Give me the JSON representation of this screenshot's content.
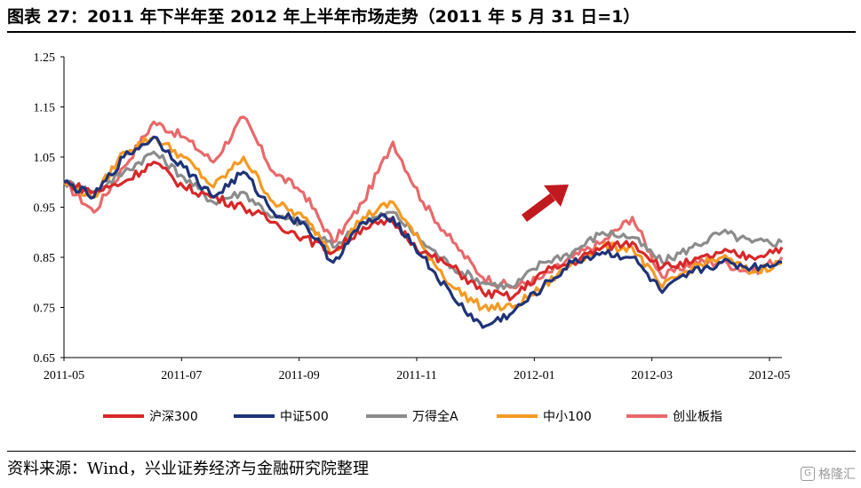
{
  "title": "图表 27：2011 年下半年至 2012 年上半年市场走势（2011 年 5 月 31 日=1）",
  "source": "资料来源：Wind，兴业证券经济与金融研究院整理",
  "watermark": "格隆汇",
  "colors": {
    "hs300": "#d7282a",
    "zz500": "#1f3378",
    "wind_a": "#8c8c8c",
    "zx100": "#f59a23",
    "cyb": "#e8696b",
    "arrow": "#c0191e"
  },
  "chart_data": {
    "type": "line",
    "xlabel": "",
    "ylabel": "",
    "ylim": [
      0.65,
      1.25
    ],
    "yticks": [
      "0.65",
      "0.75",
      "0.85",
      "0.95",
      "1.05",
      "1.15",
      "1.25"
    ],
    "xticks": [
      "2011-05",
      "2011-07",
      "2011-09",
      "2011-11",
      "2012-01",
      "2012-03",
      "2012-05"
    ],
    "x": [
      "2011-05",
      "2011-06a",
      "2011-06b",
      "2011-07a",
      "2011-07b",
      "2011-08a",
      "2011-08b",
      "2011-09a",
      "2011-09b",
      "2011-10a",
      "2011-10b",
      "2011-11a",
      "2011-11b",
      "2011-12a",
      "2011-12b",
      "2012-01a",
      "2012-01b",
      "2012-02a",
      "2012-02b",
      "2012-03a",
      "2012-03b",
      "2012-04a",
      "2012-04b",
      "2012-05a",
      "2012-05b"
    ],
    "legend_position": "bottom",
    "grid": false,
    "series": [
      {
        "name": "沪深300",
        "key": "hs300",
        "values": [
          1.0,
          0.98,
          1.0,
          1.04,
          0.99,
          0.97,
          0.95,
          0.92,
          0.89,
          0.86,
          0.91,
          0.92,
          0.86,
          0.83,
          0.78,
          0.77,
          0.82,
          0.84,
          0.87,
          0.88,
          0.83,
          0.84,
          0.86,
          0.85,
          0.87
        ]
      },
      {
        "name": "中证500",
        "key": "zz500",
        "values": [
          1.0,
          0.97,
          1.05,
          1.09,
          1.03,
          0.97,
          1.02,
          0.94,
          0.92,
          0.84,
          0.92,
          0.93,
          0.85,
          0.77,
          0.71,
          0.74,
          0.79,
          0.84,
          0.86,
          0.85,
          0.78,
          0.82,
          0.84,
          0.83,
          0.84
        ]
      },
      {
        "name": "万得全A",
        "key": "wind_a",
        "values": [
          1.0,
          0.98,
          1.02,
          1.06,
          1.01,
          0.96,
          0.98,
          0.93,
          0.92,
          0.87,
          0.92,
          0.94,
          0.88,
          0.83,
          0.8,
          0.79,
          0.84,
          0.86,
          0.9,
          0.89,
          0.84,
          0.87,
          0.9,
          0.88,
          0.88
        ]
      },
      {
        "name": "中小100",
        "key": "zx100",
        "values": [
          1.0,
          0.97,
          1.06,
          1.09,
          1.05,
          0.99,
          1.05,
          0.96,
          0.93,
          0.86,
          0.93,
          0.96,
          0.87,
          0.79,
          0.75,
          0.75,
          0.79,
          0.84,
          0.87,
          0.87,
          0.79,
          0.83,
          0.85,
          0.82,
          0.84
        ]
      },
      {
        "name": "创业板指",
        "key": "cyb",
        "values": [
          1.0,
          0.94,
          1.03,
          1.12,
          1.09,
          1.04,
          1.13,
          1.02,
          0.98,
          0.88,
          0.96,
          1.08,
          0.96,
          0.88,
          0.81,
          0.79,
          0.81,
          0.85,
          0.88,
          0.93,
          0.81,
          0.84,
          0.84,
          0.82,
          0.85
        ]
      }
    ]
  }
}
